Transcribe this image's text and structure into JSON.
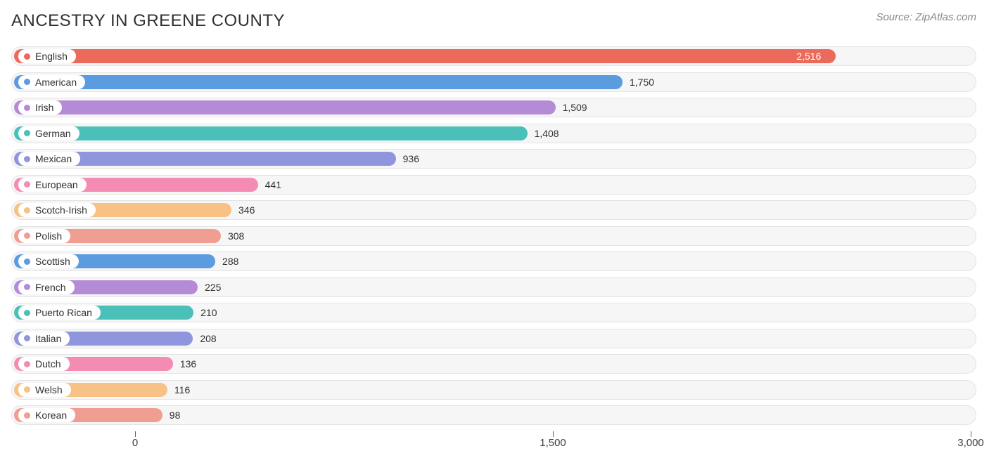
{
  "chart": {
    "title": "ANCESTRY IN GREENE COUNTY",
    "source": "Source: ZipAtlas.com",
    "type": "bar",
    "background_color": "#ffffff",
    "track_bg": "#f6f6f6",
    "track_border": "#e3e3e3",
    "text_color": "#303030",
    "title_fontsize": 24,
    "label_fontsize": 14,
    "axis_fontsize": 15,
    "x_axis": {
      "min": 0,
      "max": 3000,
      "ticks": [
        0,
        1500,
        3000
      ],
      "labels": [
        "0",
        "1,500",
        "3,000"
      ]
    },
    "series": [
      {
        "label": "English",
        "value": 2516,
        "display": "2,516",
        "color": "#eb6a5b",
        "value_inside": true
      },
      {
        "label": "American",
        "value": 1750,
        "display": "1,750",
        "color": "#5b9bdf",
        "value_inside": false
      },
      {
        "label": "Irish",
        "value": 1509,
        "display": "1,509",
        "color": "#b58bd6",
        "value_inside": false
      },
      {
        "label": "German",
        "value": 1408,
        "display": "1,408",
        "color": "#4ac0b8",
        "value_inside": false
      },
      {
        "label": "Mexican",
        "value": 936,
        "display": "936",
        "color": "#9096dd",
        "value_inside": false
      },
      {
        "label": "European",
        "value": 441,
        "display": "441",
        "color": "#f48bb3",
        "value_inside": false
      },
      {
        "label": "Scotch-Irish",
        "value": 346,
        "display": "346",
        "color": "#f8c185",
        "value_inside": false
      },
      {
        "label": "Polish",
        "value": 308,
        "display": "308",
        "color": "#f09d92",
        "value_inside": false
      },
      {
        "label": "Scottish",
        "value": 288,
        "display": "288",
        "color": "#5b9bdf",
        "value_inside": false
      },
      {
        "label": "French",
        "value": 225,
        "display": "225",
        "color": "#b58bd6",
        "value_inside": false
      },
      {
        "label": "Puerto Rican",
        "value": 210,
        "display": "210",
        "color": "#4ac0b8",
        "value_inside": false
      },
      {
        "label": "Italian",
        "value": 208,
        "display": "208",
        "color": "#9096dd",
        "value_inside": false
      },
      {
        "label": "Dutch",
        "value": 136,
        "display": "136",
        "color": "#f48bb3",
        "value_inside": false
      },
      {
        "label": "Welsh",
        "value": 116,
        "display": "116",
        "color": "#f8c185",
        "value_inside": false
      },
      {
        "label": "Korean",
        "value": 98,
        "display": "98",
        "color": "#f09d92",
        "value_inside": false
      }
    ],
    "plot_inner_width": 1372,
    "bar_origin_offset": 176
  }
}
